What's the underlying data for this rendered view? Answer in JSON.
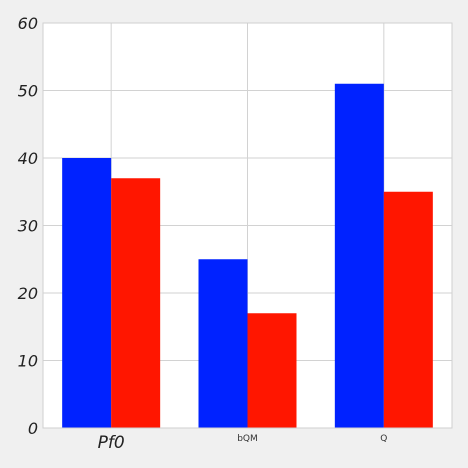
{
  "chart_data": {
    "type": "bar",
    "categories": [
      "Pf0",
      "bQM",
      "Q"
    ],
    "series": [
      {
        "values": [
          40,
          25,
          51
        ],
        "color": "#0022ff"
      },
      {
        "values": [
          37,
          17,
          35
        ],
        "color": "#ff1600"
      }
    ],
    "ylim": [
      0,
      60
    ],
    "yticks": [
      0,
      10,
      20,
      30,
      40,
      50,
      60
    ],
    "grid": true
  }
}
